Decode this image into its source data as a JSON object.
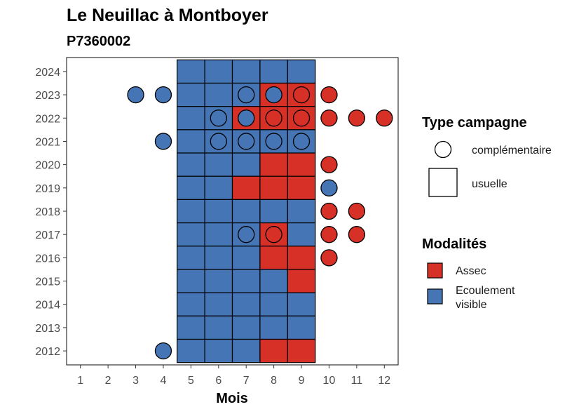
{
  "chart_data": {
    "type": "heatmap",
    "title": "Le Neuillac à Montboyer",
    "subtitle": "P7360002",
    "xlabel": "Mois",
    "ylabel": "",
    "x_ticks": [
      1,
      2,
      3,
      4,
      5,
      6,
      7,
      8,
      9,
      10,
      11,
      12
    ],
    "y_ticks": [
      2012,
      2013,
      2014,
      2015,
      2016,
      2017,
      2018,
      2019,
      2020,
      2021,
      2022,
      2023,
      2024
    ],
    "xlim": [
      0.5,
      12.5
    ],
    "ylim": [
      2011.4,
      2024.6
    ],
    "grid": false,
    "colors": {
      "Assec": "#d73027",
      "Ecoulement visible": "#4575b4"
    },
    "legend_type": {
      "title": "Type campagne",
      "entries": [
        {
          "label": "complémentaire",
          "shape": "circle"
        },
        {
          "label": "usuelle",
          "shape": "square"
        }
      ]
    },
    "legend_modalites": {
      "title": "Modalités",
      "entries": [
        {
          "label": "Assec",
          "color": "#d73027"
        },
        {
          "label": "Ecoulement visible",
          "lines": [
            "Ecoulement",
            "visible"
          ],
          "color": "#4575b4"
        }
      ]
    },
    "usuelle": [
      {
        "year": 2024,
        "values": {
          "5": "Ecoulement visible",
          "6": "Ecoulement visible",
          "7": "Ecoulement visible",
          "8": "Ecoulement visible",
          "9": "Ecoulement visible"
        }
      },
      {
        "year": 2023,
        "values": {
          "5": "Ecoulement visible",
          "6": "Ecoulement visible",
          "7": "Ecoulement visible",
          "8": "Assec",
          "9": "Assec"
        }
      },
      {
        "year": 2022,
        "values": {
          "5": "Ecoulement visible",
          "6": "Ecoulement visible",
          "7": "Assec",
          "8": "Assec",
          "9": "Assec"
        }
      },
      {
        "year": 2021,
        "values": {
          "5": "Ecoulement visible",
          "6": "Ecoulement visible",
          "7": "Ecoulement visible",
          "8": "Ecoulement visible",
          "9": "Ecoulement visible"
        }
      },
      {
        "year": 2020,
        "values": {
          "5": "Ecoulement visible",
          "6": "Ecoulement visible",
          "7": "Ecoulement visible",
          "8": "Assec",
          "9": "Assec"
        }
      },
      {
        "year": 2019,
        "values": {
          "5": "Ecoulement visible",
          "6": "Ecoulement visible",
          "7": "Assec",
          "8": "Assec",
          "9": "Assec"
        }
      },
      {
        "year": 2018,
        "values": {
          "5": "Ecoulement visible",
          "6": "Ecoulement visible",
          "7": "Ecoulement visible",
          "8": "Ecoulement visible",
          "9": "Ecoulement visible"
        }
      },
      {
        "year": 2017,
        "values": {
          "5": "Ecoulement visible",
          "6": "Ecoulement visible",
          "7": "Ecoulement visible",
          "8": "Assec",
          "9": "Ecoulement visible"
        }
      },
      {
        "year": 2016,
        "values": {
          "5": "Ecoulement visible",
          "6": "Ecoulement visible",
          "7": "Ecoulement visible",
          "8": "Assec",
          "9": "Assec"
        }
      },
      {
        "year": 2015,
        "values": {
          "5": "Ecoulement visible",
          "6": "Ecoulement visible",
          "7": "Ecoulement visible",
          "8": "Ecoulement visible",
          "9": "Assec"
        }
      },
      {
        "year": 2014,
        "values": {
          "5": "Ecoulement visible",
          "6": "Ecoulement visible",
          "7": "Ecoulement visible",
          "8": "Ecoulement visible",
          "9": "Ecoulement visible"
        }
      },
      {
        "year": 2013,
        "values": {
          "5": "Ecoulement visible",
          "6": "Ecoulement visible",
          "7": "Ecoulement visible",
          "8": "Ecoulement visible",
          "9": "Ecoulement visible"
        }
      },
      {
        "year": 2012,
        "values": {
          "5": "Ecoulement visible",
          "6": "Ecoulement visible",
          "7": "Ecoulement visible",
          "8": "Assec",
          "9": "Assec"
        }
      }
    ],
    "complementaire": [
      {
        "year": 2023,
        "month": 3,
        "value": "Ecoulement visible"
      },
      {
        "year": 2023,
        "month": 4,
        "value": "Ecoulement visible"
      },
      {
        "year": 2023,
        "month": 7,
        "value": "Ecoulement visible"
      },
      {
        "year": 2023,
        "month": 8,
        "value": "Ecoulement visible"
      },
      {
        "year": 2023,
        "month": 9,
        "value": "Assec"
      },
      {
        "year": 2023,
        "month": 10,
        "value": "Assec"
      },
      {
        "year": 2022,
        "month": 6,
        "value": "Ecoulement visible"
      },
      {
        "year": 2022,
        "month": 7,
        "value": "Ecoulement visible"
      },
      {
        "year": 2022,
        "month": 8,
        "value": "Assec"
      },
      {
        "year": 2022,
        "month": 9,
        "value": "Assec"
      },
      {
        "year": 2022,
        "month": 10,
        "value": "Assec"
      },
      {
        "year": 2022,
        "month": 11,
        "value": "Assec"
      },
      {
        "year": 2022,
        "month": 12,
        "value": "Assec"
      },
      {
        "year": 2021,
        "month": 4,
        "value": "Ecoulement visible"
      },
      {
        "year": 2021,
        "month": 6,
        "value": "Ecoulement visible"
      },
      {
        "year": 2021,
        "month": 7,
        "value": "Ecoulement visible"
      },
      {
        "year": 2021,
        "month": 8,
        "value": "Ecoulement visible"
      },
      {
        "year": 2021,
        "month": 9,
        "value": "Ecoulement visible"
      },
      {
        "year": 2020,
        "month": 10,
        "value": "Assec"
      },
      {
        "year": 2019,
        "month": 10,
        "value": "Ecoulement visible"
      },
      {
        "year": 2018,
        "month": 10,
        "value": "Assec"
      },
      {
        "year": 2018,
        "month": 11,
        "value": "Assec"
      },
      {
        "year": 2017,
        "month": 7,
        "value": "Ecoulement visible"
      },
      {
        "year": 2017,
        "month": 8,
        "value": "Assec"
      },
      {
        "year": 2017,
        "month": 10,
        "value": "Assec"
      },
      {
        "year": 2017,
        "month": 11,
        "value": "Assec"
      },
      {
        "year": 2016,
        "month": 10,
        "value": "Assec"
      },
      {
        "year": 2012,
        "month": 4,
        "value": "Ecoulement visible"
      }
    ]
  }
}
